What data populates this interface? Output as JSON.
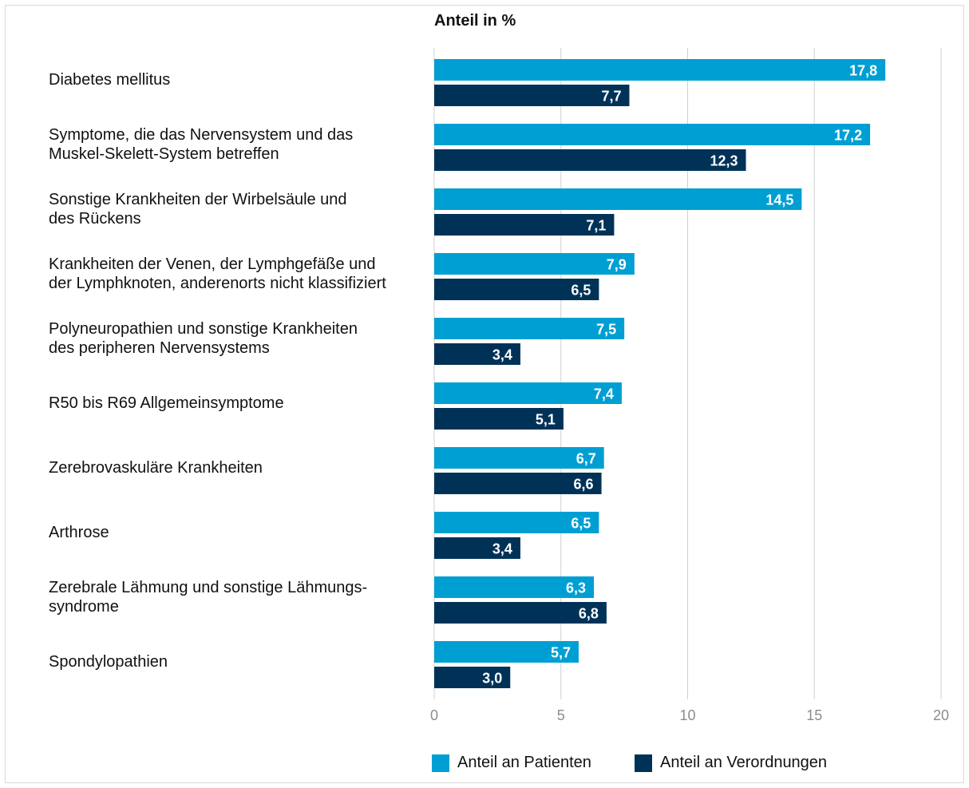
{
  "chart_data": {
    "type": "bar",
    "orientation": "horizontal",
    "xlabel": "Anteil in %",
    "xlim": [
      0,
      20
    ],
    "xticks": [
      0,
      5,
      10,
      15,
      20
    ],
    "grid": true,
    "legend_position": "bottom",
    "categories": [
      "Diabetes mellitus",
      "Symptome, die das Nervensystem und das\nMuskel-Skelett-System betreffen",
      "Sonstige Krankheiten der Wirbelsäule und\ndes Rückens",
      "Krankheiten der Venen, der Lymphgefäße und\nder Lymphknoten, anderenorts nicht klassifiziert",
      "Polyneuropathien und sonstige Krankheiten\ndes peripheren Nervensystems",
      "R50 bis R69 Allgemeinsymptome",
      "Zerebrovaskuläre Krankheiten",
      "Arthrose",
      "Zerebrale Lähmung und sonstige Lähmungs-\nsyndrome",
      "Spondylopathien"
    ],
    "series": [
      {
        "name": "Anteil an Patienten",
        "color": "#009fd3",
        "values": [
          17.8,
          17.2,
          14.5,
          7.9,
          7.5,
          7.4,
          6.7,
          6.5,
          6.3,
          5.7
        ],
        "labels": [
          "17,8",
          "17,2",
          "14,5",
          "7,9",
          "7,5",
          "7,4",
          "6,7",
          "6,5",
          "6,3",
          "5,7"
        ]
      },
      {
        "name": "Anteil an Verordnungen",
        "color": "#003258",
        "values": [
          7.7,
          12.3,
          7.1,
          6.5,
          3.4,
          5.1,
          6.6,
          3.4,
          6.8,
          3.0
        ],
        "labels": [
          "7,7",
          "12,3",
          "7,1",
          "6,5",
          "3,4",
          "5,1",
          "6,6",
          "3,4",
          "6,8",
          "3,0"
        ]
      }
    ]
  }
}
